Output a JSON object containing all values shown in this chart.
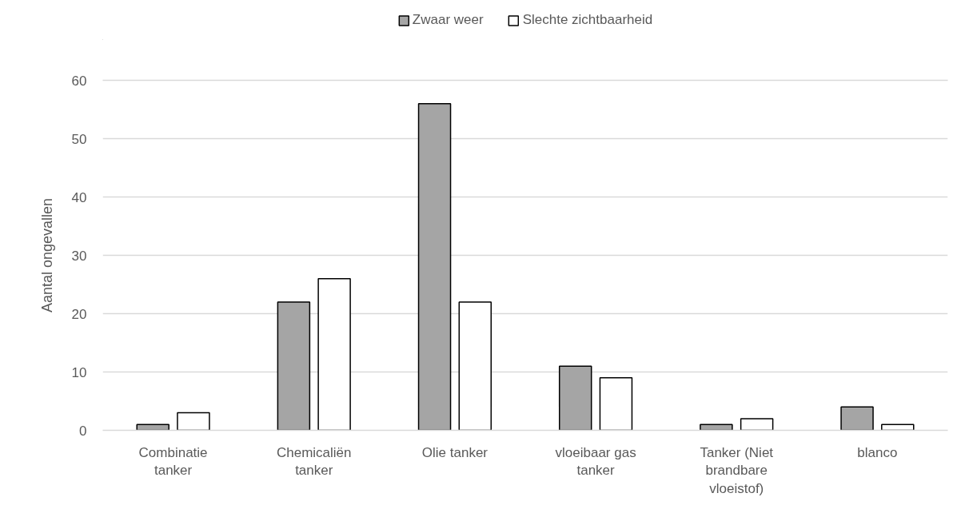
{
  "chart_data": {
    "type": "bar",
    "categories": [
      "Combinatie tanker",
      "Chemicaliën tanker",
      "Olie tanker",
      "vloeibaar gas tanker",
      "Tanker (Niet brandbare vloeistof)",
      "blanco"
    ],
    "series": [
      {
        "name": "Zwaar weer",
        "color": "#a5a5a5",
        "values": [
          1,
          22,
          56,
          11,
          1,
          4
        ]
      },
      {
        "name": "Slechte zichtbaarheid",
        "color": "#ffffff",
        "values": [
          3,
          26,
          22,
          9,
          2,
          1
        ]
      }
    ],
    "ylabel": "Aantal ongevallen",
    "ylim": [
      0,
      60
    ],
    "yticks": [
      0,
      10,
      20,
      30,
      40,
      50,
      60
    ],
    "grid": "y",
    "legend": "top"
  }
}
